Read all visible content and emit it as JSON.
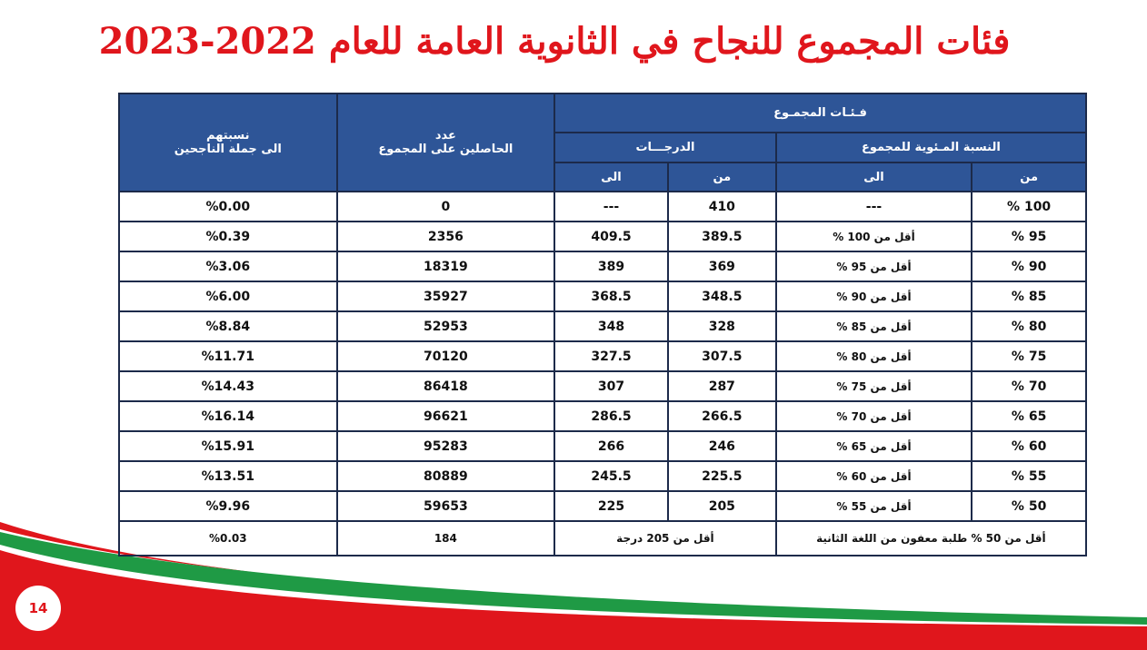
{
  "header": {
    "title": "فئات المجموع للنجاح في الثانوية العامة للعام 2022-2023"
  },
  "table": {
    "group_header": "فـئـات المجمـوع",
    "count_header": "عدد\nالحاصلين على المجموع",
    "ratio_header": "نسبتهم\nالى جملة الناجحين",
    "percent_header": "النسبة المـئوية للمجموع",
    "grades_header": "الدرجـــات",
    "sub_headers": [
      "من",
      "الى",
      "من",
      "الى"
    ],
    "rows": [
      [
        "100 %",
        "---",
        "410",
        "---",
        "0",
        "%0.00"
      ],
      [
        "95 %",
        "أقل من 100 %",
        "389.5",
        "409.5",
        "2356",
        "%0.39"
      ],
      [
        "90 %",
        "أقل من 95 %",
        "369",
        "389",
        "18319",
        "%3.06"
      ],
      [
        "85 %",
        "أقل من 90 %",
        "348.5",
        "368.5",
        "35927",
        "%6.00"
      ],
      [
        "80 %",
        "أقل من 85 %",
        "328",
        "348",
        "52953",
        "%8.84"
      ],
      [
        "75 %",
        "أقل من 80 %",
        "307.5",
        "327.5",
        "70120",
        "%11.71"
      ],
      [
        "70 %",
        "أقل من 75 %",
        "287",
        "307",
        "86418",
        "%14.43"
      ],
      [
        "65 %",
        "أقل من 70 %",
        "266.5",
        "286.5",
        "96621",
        "%16.14"
      ],
      [
        "60 %",
        "أقل من 65 %",
        "246",
        "266",
        "95283",
        "%15.91"
      ],
      [
        "55 %",
        "أقل من 60 %",
        "225.5",
        "245.5",
        "80889",
        "%13.51"
      ],
      [
        "50 %",
        "أقل من 55 %",
        "205",
        "225",
        "59653",
        "%9.96"
      ]
    ],
    "last_row": [
      "أقل من 50 % طلبة معفون من اللغة الثانية",
      "أقل من 205 درجة",
      "184",
      "%0.03"
    ]
  },
  "footer": {
    "page_number": "14"
  }
}
